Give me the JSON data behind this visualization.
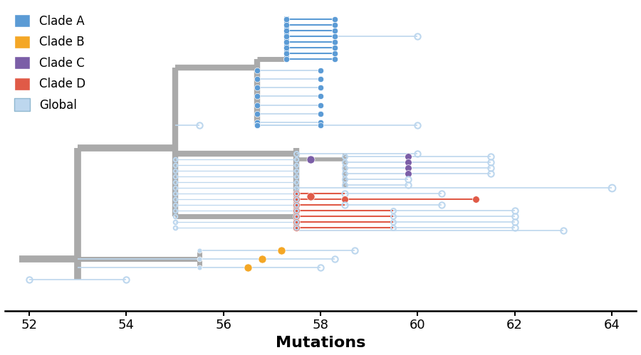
{
  "xlim": [
    51.5,
    64.5
  ],
  "ylim": [
    -5,
    102
  ],
  "xlabel": "Mutations",
  "xlabel_fontsize": 16,
  "tick_fontsize": 13,
  "xticks": [
    52,
    54,
    56,
    58,
    60,
    62,
    64
  ],
  "colors": {
    "clade_a": "#5B9BD5",
    "clade_b": "#F4A726",
    "clade_c": "#7B5EA7",
    "clade_d": "#E05A47",
    "global": "#BDD7EE",
    "gray": "#AAAAAA"
  },
  "legend": [
    {
      "label": "Clade A",
      "color": "#5B9BD5"
    },
    {
      "label": "Clade B",
      "color": "#F4A726"
    },
    {
      "label": "Clade C",
      "color": "#7B5EA7"
    },
    {
      "label": "Clade D",
      "color": "#E05A47"
    },
    {
      "label": "Global",
      "color": "#BDD7EE"
    }
  ]
}
